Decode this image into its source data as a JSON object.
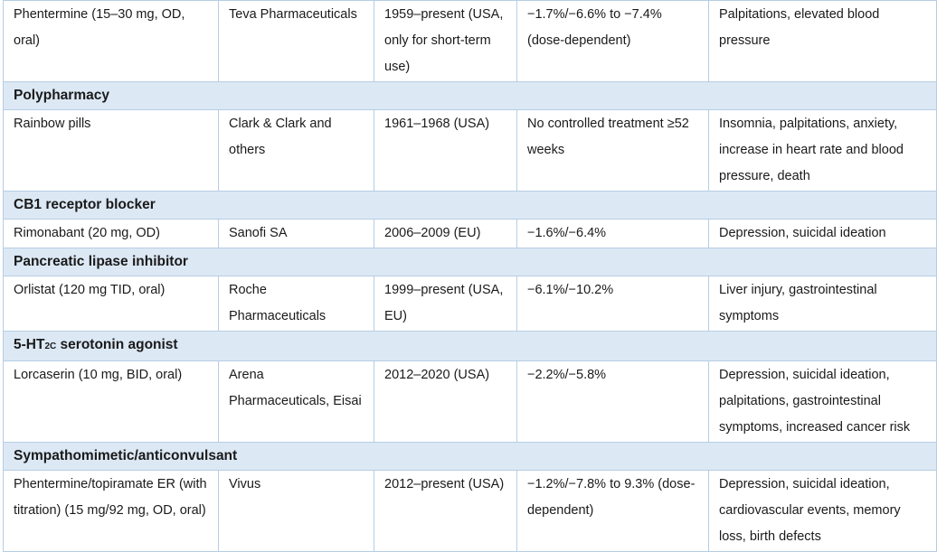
{
  "rows": [
    {
      "kind": "data",
      "drug": "Phentermine (15–30 mg, OD, oral)",
      "company": "Teva Pharmaceuticals",
      "years": "1959–present (USA, only for short-term use)",
      "effect": "−1.7%/−6.6% to −7.4% (dose-dependent)",
      "adverse": "Palpitations, elevated blood pressure"
    },
    {
      "kind": "section",
      "label": "Polypharmacy"
    },
    {
      "kind": "data",
      "drug": "Rainbow pills",
      "company": "Clark & Clark and others",
      "years": "1961–1968 (USA)",
      "effect": "No controlled treatment ≥52 weeks",
      "adverse": "Insomnia, palpitations, anxiety, increase in heart rate and blood pressure, death"
    },
    {
      "kind": "section",
      "label": "CB1 receptor blocker"
    },
    {
      "kind": "data",
      "drug": "Rimonabant (20 mg, OD)",
      "company": "Sanofi SA",
      "years": "2006–2009 (EU)",
      "effect": "−1.6%/−6.4%",
      "adverse": "Depression, suicidal ideation"
    },
    {
      "kind": "section",
      "label": "Pancreatic lipase inhibitor"
    },
    {
      "kind": "data",
      "drug": "Orlistat (120 mg TID, oral)",
      "company": "Roche Pharmaceuticals",
      "years": "1999–present (USA, EU)",
      "effect": "−6.1%/−10.2%",
      "adverse": "Liver injury, gastrointestinal symptoms"
    },
    {
      "kind": "section",
      "label": "5-HT",
      "label_sub": "2C",
      "label_tail": " serotonin agonist"
    },
    {
      "kind": "data",
      "drug": "Lorcaserin (10 mg, BID, oral)",
      "company": "Arena Pharmaceuticals, Eisai",
      "years": "2012–2020 (USA)",
      "effect": "−2.2%/−5.8%",
      "adverse": "Depression, suicidal ideation, palpitations, gastrointestinal symptoms, increased cancer risk"
    },
    {
      "kind": "section",
      "label": "Sympathomimetic/anticonvulsant"
    },
    {
      "kind": "data",
      "drug": "Phentermine/topiramate ER (with titration) (15 mg/92 mg, OD, oral)",
      "company": "Vivus",
      "years": "2012–present (USA)",
      "effect": "−1.2%/−7.8% to 9.3% (dose-dependent)",
      "adverse": "Depression, suicidal ideation, cardiovascular events, memory loss, birth defects"
    }
  ]
}
